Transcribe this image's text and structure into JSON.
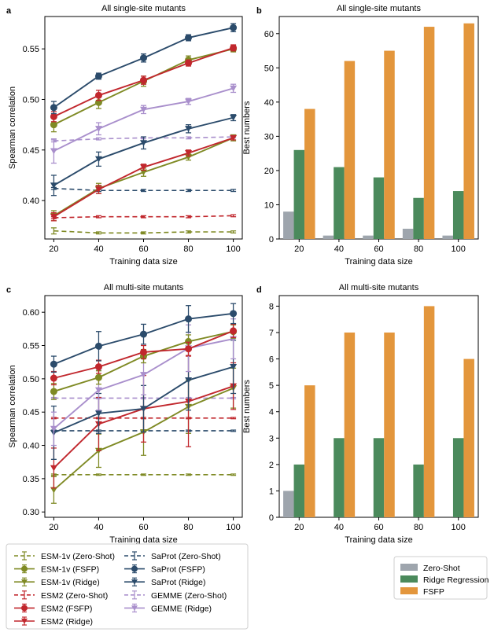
{
  "colors": {
    "ESM-1v": "#7f8a24",
    "ESM2": "#c1272d",
    "SaProt": "#2b4b6b",
    "GEMME": "#a98fcc",
    "Zero-Shot": "#9ea5ad",
    "Ridge Regression": "#4b8a5c",
    "FSFP": "#e3963c"
  },
  "panels": {
    "a": {
      "label": "a"
    },
    "b": {
      "label": "b"
    },
    "c": {
      "label": "c"
    },
    "d": {
      "label": "d"
    }
  },
  "chart_data": [
    {
      "id": "a",
      "type": "line",
      "title": "All single-site mutants",
      "xlabel": "Training data size",
      "ylabel": "Spearman correlation",
      "x": [
        20,
        40,
        60,
        80,
        100
      ],
      "xticks": [
        "20",
        "40",
        "60",
        "80",
        "100"
      ],
      "ylim": [
        0.362,
        0.582
      ],
      "yticks": [
        0.4,
        0.45,
        0.5,
        0.55
      ],
      "ytick_labels": [
        "0.40",
        "0.45",
        "0.50",
        "0.55"
      ],
      "series": [
        {
          "name": "ESM-1v (Zero-Shot)",
          "model": "ESM-1v",
          "style": "zero",
          "values": [
            0.37,
            0.368,
            0.368,
            0.369,
            0.369
          ],
          "err": [
            0.003,
            0.001,
            0.001,
            0.001,
            0.001
          ]
        },
        {
          "name": "ESM2 (Zero-Shot)",
          "model": "ESM2",
          "style": "zero",
          "values": [
            0.383,
            0.384,
            0.384,
            0.384,
            0.385
          ],
          "err": [
            0.001,
            0.001,
            0.001,
            0.001,
            0.001
          ]
        },
        {
          "name": "SaProt (Zero-Shot)",
          "model": "SaProt",
          "style": "zero",
          "values": [
            0.412,
            0.41,
            0.41,
            0.41,
            0.41
          ],
          "err": [
            0.001,
            0.001,
            0.001,
            0.001,
            0.001
          ]
        },
        {
          "name": "GEMME (Zero-Shot)",
          "model": "GEMME",
          "style": "zero",
          "values": [
            0.459,
            0.461,
            0.462,
            0.462,
            0.463
          ],
          "err": [
            0.001,
            0.001,
            0.001,
            0.001,
            0.001
          ]
        },
        {
          "name": "ESM-1v (Ridge)",
          "model": "ESM-1v",
          "style": "ridge",
          "values": [
            0.385,
            0.412,
            0.428,
            0.443,
            0.462
          ],
          "err": [
            0.005,
            0.005,
            0.004,
            0.003,
            0.003
          ]
        },
        {
          "name": "ESM2 (Ridge)",
          "model": "ESM2",
          "style": "ridge",
          "values": [
            0.384,
            0.411,
            0.433,
            0.447,
            0.462
          ],
          "err": [
            0.004,
            0.004,
            0.003,
            0.003,
            0.002
          ]
        },
        {
          "name": "SaProt (Ridge)",
          "model": "SaProt",
          "style": "ridge",
          "values": [
            0.415,
            0.441,
            0.457,
            0.471,
            0.482
          ],
          "err": [
            0.01,
            0.007,
            0.006,
            0.004,
            0.003
          ]
        },
        {
          "name": "GEMME (Ridge)",
          "model": "GEMME",
          "style": "ridge",
          "values": [
            0.449,
            0.471,
            0.49,
            0.498,
            0.511
          ],
          "err": [
            0.012,
            0.006,
            0.004,
            0.003,
            0.004
          ]
        },
        {
          "name": "ESM-1v (FSFP)",
          "model": "ESM-1v",
          "style": "fsfp",
          "values": [
            0.475,
            0.497,
            0.518,
            0.539,
            0.55
          ],
          "err": [
            0.007,
            0.006,
            0.005,
            0.004,
            0.003
          ]
        },
        {
          "name": "ESM2 (FSFP)",
          "model": "ESM2",
          "style": "fsfp",
          "values": [
            0.483,
            0.504,
            0.519,
            0.536,
            0.551
          ],
          "err": [
            0.005,
            0.005,
            0.004,
            0.003,
            0.003
          ]
        },
        {
          "name": "SaProt (FSFP)",
          "model": "SaProt",
          "style": "fsfp",
          "values": [
            0.492,
            0.523,
            0.541,
            0.561,
            0.571
          ],
          "err": [
            0.006,
            0.003,
            0.004,
            0.003,
            0.004
          ]
        }
      ]
    },
    {
      "id": "b",
      "type": "bar",
      "title": "All single-site mutants",
      "xlabel": "Training data size",
      "ylabel": "Best numbers",
      "categories": [
        "20",
        "40",
        "60",
        "80",
        "100"
      ],
      "ylim": [
        0,
        65
      ],
      "yticks": [
        0,
        10,
        20,
        30,
        40,
        50,
        60
      ],
      "series": [
        {
          "name": "Zero-Shot",
          "values": [
            8,
            1,
            1,
            3,
            1
          ]
        },
        {
          "name": "Ridge Regression",
          "values": [
            26,
            21,
            18,
            12,
            14
          ]
        },
        {
          "name": "FSFP",
          "values": [
            38,
            52,
            55,
            62,
            63
          ]
        }
      ]
    },
    {
      "id": "c",
      "type": "line",
      "title": "All multi-site mutants",
      "xlabel": "Training data size",
      "ylabel": "Spearman correlation",
      "x": [
        20,
        40,
        60,
        80,
        100
      ],
      "xticks": [
        "20",
        "40",
        "60",
        "80",
        "100"
      ],
      "ylim": [
        0.292,
        0.625
      ],
      "yticks": [
        0.3,
        0.35,
        0.4,
        0.45,
        0.5,
        0.55,
        0.6
      ],
      "ytick_labels": [
        "0.30",
        "0.35",
        "0.40",
        "0.45",
        "0.50",
        "0.55",
        "0.60"
      ],
      "series": [
        {
          "name": "ESM-1v (Zero-Shot)",
          "model": "ESM-1v",
          "style": "zero",
          "values": [
            0.356,
            0.356,
            0.356,
            0.356,
            0.356
          ],
          "err": [
            0.001,
            0.001,
            0.001,
            0.001,
            0.001
          ]
        },
        {
          "name": "ESM2 (Zero-Shot)",
          "model": "ESM2",
          "style": "zero",
          "values": [
            0.441,
            0.441,
            0.441,
            0.441,
            0.441
          ],
          "err": [
            0.001,
            0.001,
            0.001,
            0.001,
            0.001
          ]
        },
        {
          "name": "SaProt (Zero-Shot)",
          "model": "SaProt",
          "style": "zero",
          "values": [
            0.422,
            0.422,
            0.422,
            0.422,
            0.422
          ],
          "err": [
            0.001,
            0.001,
            0.001,
            0.001,
            0.001
          ]
        },
        {
          "name": "GEMME (Zero-Shot)",
          "model": "GEMME",
          "style": "zero",
          "values": [
            0.471,
            0.471,
            0.471,
            0.471,
            0.471
          ],
          "err": [
            0.001,
            0.001,
            0.001,
            0.001,
            0.001
          ]
        },
        {
          "name": "ESM-1v (Ridge)",
          "model": "ESM-1v",
          "style": "ridge",
          "values": [
            0.333,
            0.392,
            0.42,
            0.458,
            0.486
          ],
          "err": [
            0.02,
            0.025,
            0.035,
            0.04,
            0.03
          ]
        },
        {
          "name": "ESM2 (Ridge)",
          "model": "ESM2",
          "style": "ridge",
          "values": [
            0.366,
            0.432,
            0.455,
            0.466,
            0.489
          ],
          "err": [
            0.03,
            0.04,
            0.05,
            0.068,
            0.035
          ]
        },
        {
          "name": "SaProt (Ridge)",
          "model": "SaProt",
          "style": "ridge",
          "values": [
            0.419,
            0.448,
            0.455,
            0.498,
            0.518
          ],
          "err": [
            0.04,
            0.03,
            0.035,
            0.045,
            0.04
          ]
        },
        {
          "name": "GEMME (Ridge)",
          "model": "GEMME",
          "style": "ridge",
          "values": [
            0.425,
            0.483,
            0.506,
            0.546,
            0.56
          ],
          "err": [
            0.025,
            0.03,
            0.03,
            0.035,
            0.03
          ]
        },
        {
          "name": "ESM-1v (FSFP)",
          "model": "ESM-1v",
          "style": "fsfp",
          "values": [
            0.481,
            0.502,
            0.534,
            0.556,
            0.571
          ],
          "err": [
            0.012,
            0.01,
            0.01,
            0.01,
            0.01
          ]
        },
        {
          "name": "ESM2 (FSFP)",
          "model": "ESM2",
          "style": "fsfp",
          "values": [
            0.501,
            0.518,
            0.54,
            0.545,
            0.572
          ],
          "err": [
            0.01,
            0.01,
            0.01,
            0.01,
            0.01
          ]
        },
        {
          "name": "SaProt (FSFP)",
          "model": "SaProt",
          "style": "fsfp",
          "values": [
            0.522,
            0.549,
            0.567,
            0.59,
            0.598
          ],
          "err": [
            0.012,
            0.022,
            0.015,
            0.02,
            0.015
          ]
        }
      ]
    },
    {
      "id": "d",
      "type": "bar",
      "title": "All multi-site mutants",
      "xlabel": "Training data size",
      "ylabel": "Best numbers",
      "categories": [
        "20",
        "40",
        "60",
        "80",
        "100"
      ],
      "ylim": [
        0,
        8.4
      ],
      "yticks": [
        0,
        1,
        2,
        3,
        4,
        5,
        6,
        7,
        8
      ],
      "series": [
        {
          "name": "Zero-Shot",
          "values": [
            1,
            0,
            0,
            0,
            0
          ]
        },
        {
          "name": "Ridge Regression",
          "values": [
            2,
            3,
            3,
            2,
            3
          ]
        },
        {
          "name": "FSFP",
          "values": [
            5,
            7,
            7,
            8,
            6
          ]
        }
      ]
    }
  ],
  "line_legend": {
    "columns": [
      [
        "ESM-1v (Zero-Shot)",
        "ESM-1v (FSFP)",
        "ESM-1v (Ridge)",
        "ESM2 (Zero-Shot)",
        "ESM2 (FSFP)",
        "ESM2 (Ridge)"
      ],
      [
        "SaProt (Zero-Shot)",
        "SaProt (FSFP)",
        "SaProt (Ridge)",
        "GEMME (Zero-Shot)",
        "GEMME (Ridge)"
      ]
    ]
  },
  "bar_legend": {
    "entries": [
      "Zero-Shot",
      "Ridge Regression",
      "FSFP"
    ]
  }
}
